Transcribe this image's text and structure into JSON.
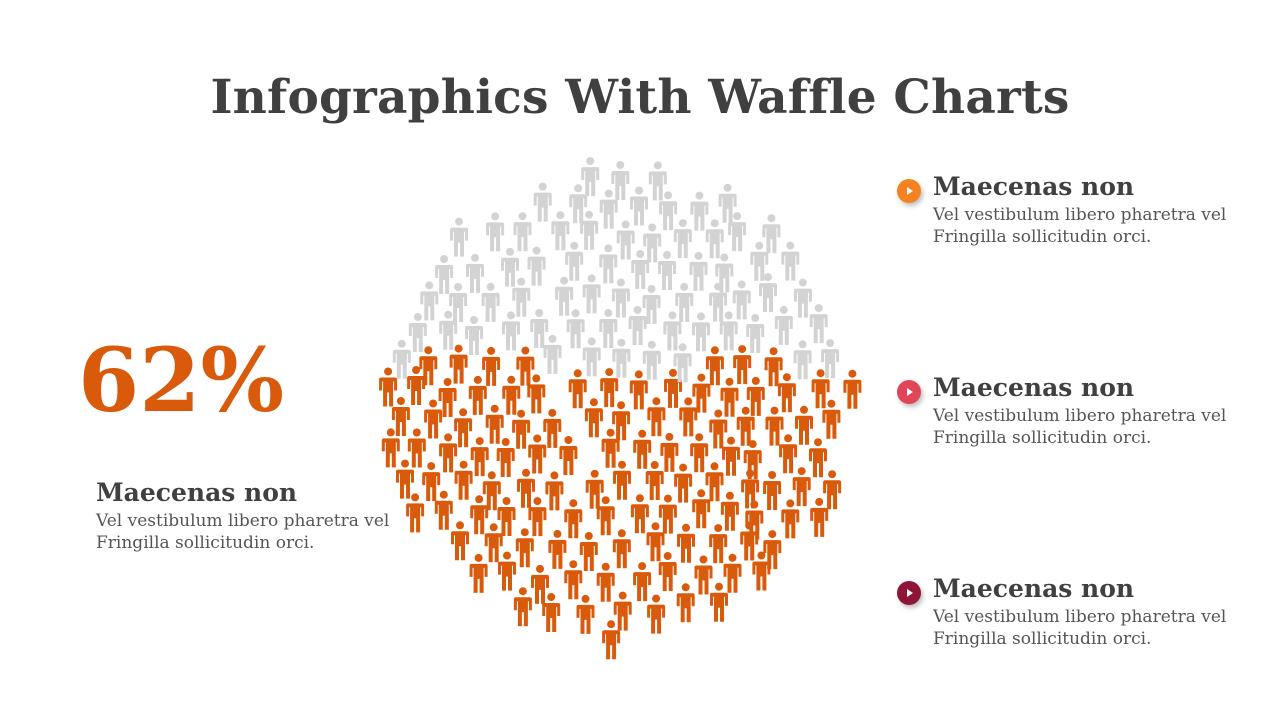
{
  "slide": {
    "title": "Infographics With Waffle Charts"
  },
  "stat": {
    "percent_label": "62%",
    "percent_value": 62,
    "heading": "Maecenas non",
    "body": "Vel vestibulum libero pharetra vel Fringilla sollicitudin orci."
  },
  "items": [
    {
      "heading": "Maecenas non",
      "body": "Vel vestibulum libero pharetra vel Fringilla sollicitudin orci.",
      "color": "#f58220"
    },
    {
      "heading": "Maecenas non",
      "body": "Vel vestibulum libero pharetra vel Fringilla sollicitudin orci.",
      "color": "#e04658"
    },
    {
      "heading": "Maecenas non",
      "body": "Vel vestibulum libero pharetra vel Fringilla sollicitudin orci.",
      "color": "#8e1538"
    }
  ],
  "waffle": {
    "filled_fraction": 0.62,
    "filled_color": "#d95a0b",
    "empty_color": "#d3d3d3",
    "icon": "person-icon"
  }
}
